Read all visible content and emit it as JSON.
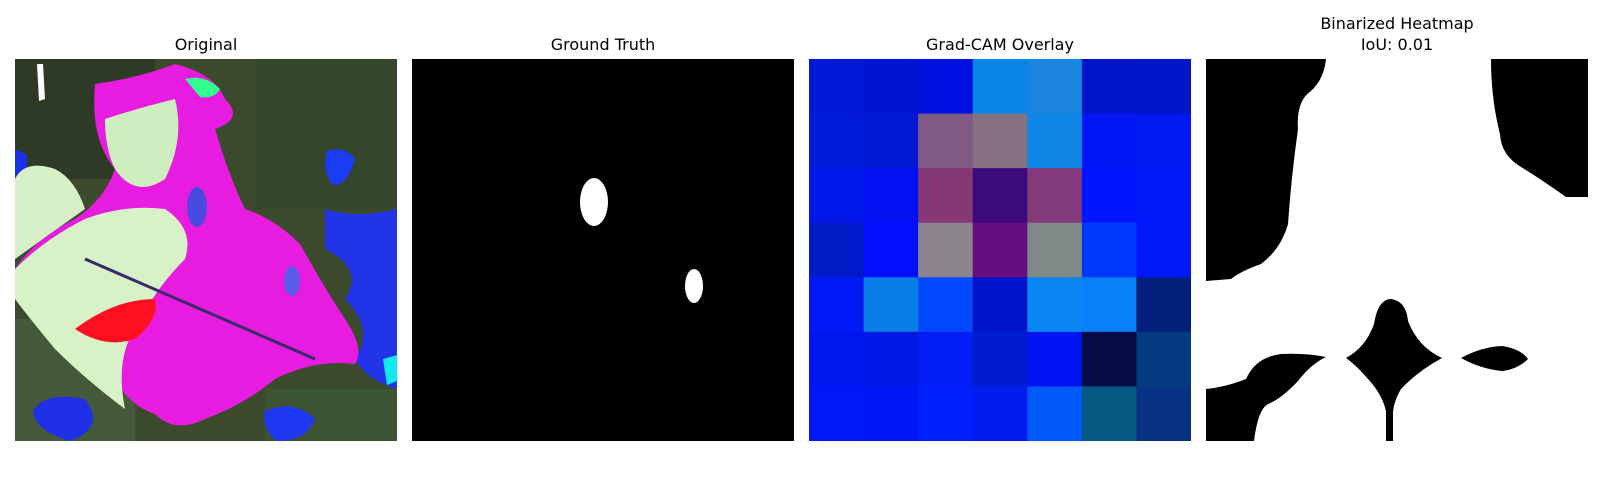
{
  "panels": {
    "original": {
      "title": "Original"
    },
    "ground_truth": {
      "title": "Ground Truth"
    },
    "gradcam": {
      "title": "Grad-CAM Overlay",
      "grid_colors": [
        [
          "#0019d6",
          "#0015d2",
          "#0010e0",
          "#0a84e6",
          "#1a86e0",
          "#0014c8",
          "#0016c8"
        ],
        [
          "#001bd8",
          "#0018d2",
          "#7f5a84",
          "#857080",
          "#0d86e6",
          "#0016f5",
          "#0019f0"
        ],
        [
          "#0017ea",
          "#0010f2",
          "#863874",
          "#3c0a7a",
          "#823a7a",
          "#0015ff",
          "#0017f7"
        ],
        [
          "#001ac8",
          "#000dff",
          "#8b848c",
          "#640e82",
          "#7d8a86",
          "#0039fb",
          "#0017f8"
        ],
        [
          "#001af5",
          "#0a7ee8",
          "#0048fb",
          "#0014cd",
          "#0a86f2",
          "#0980f6",
          "#02207c"
        ],
        [
          "#0016ee",
          "#0018e6",
          "#001ef5",
          "#001acf",
          "#0014f2",
          "#050b46",
          "#063a80"
        ],
        [
          "#0018f5",
          "#0016f5",
          "#0020fb",
          "#001aef",
          "#0059f8",
          "#055a84",
          "#063082"
        ]
      ]
    },
    "binarized": {
      "title_line1": "Binarized Heatmap",
      "title_line2": "IoU: 0.01"
    }
  }
}
